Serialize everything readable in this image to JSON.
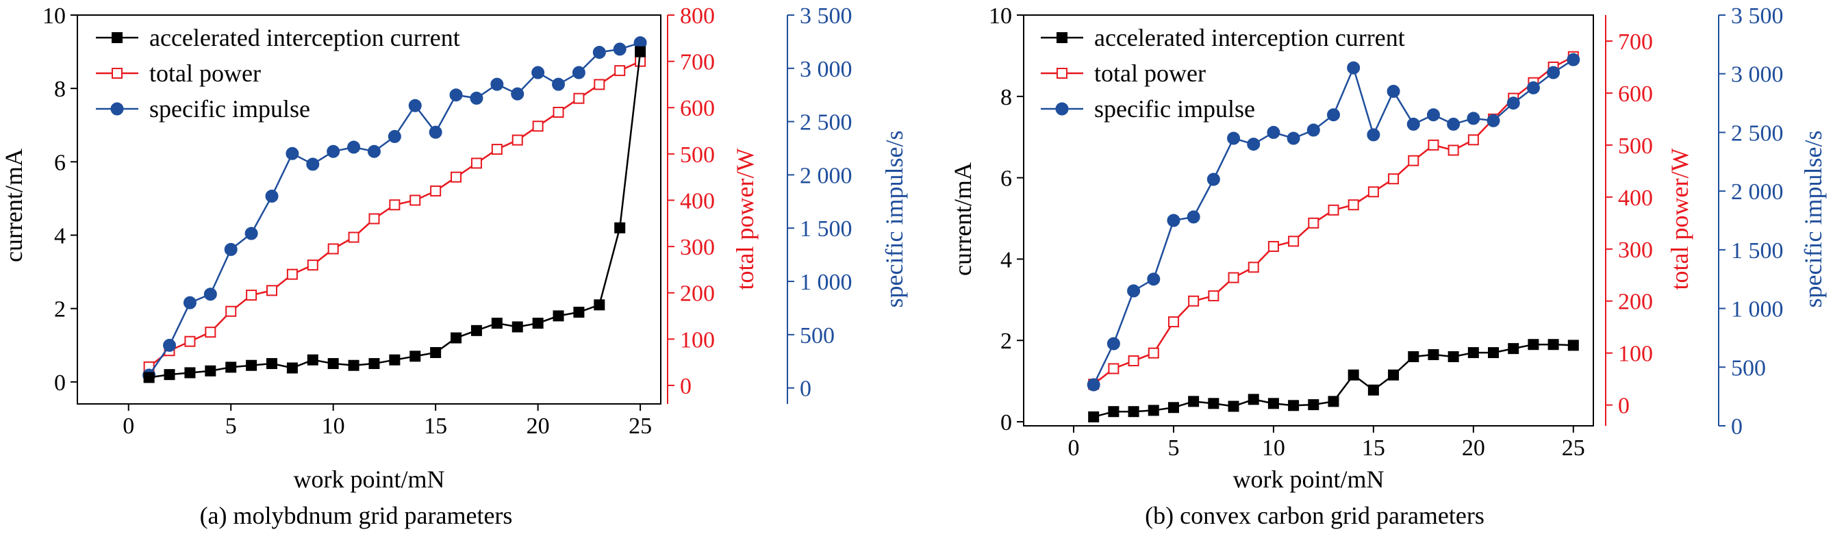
{
  "figure": {
    "panels": [
      {
        "caption": "(a) molybdnum grid parameters"
      },
      {
        "caption": "(b) convex carbon grid parameters"
      }
    ]
  },
  "colors": {
    "current": "#000000",
    "power": "#e8181f",
    "impulse": "#1f4e9c"
  },
  "chart_data": [
    {
      "type": "line",
      "caption": "(a) molybdnum grid parameters",
      "xlabel": "work point/mN",
      "xlim": [
        -2.5,
        26
      ],
      "xticks": [
        0,
        5,
        10,
        15,
        20,
        25
      ],
      "x": [
        1,
        2,
        3,
        4,
        5,
        6,
        7,
        8,
        9,
        10,
        11,
        12,
        13,
        14,
        15,
        16,
        17,
        18,
        19,
        20,
        21,
        22,
        23,
        24,
        25
      ],
      "axes": {
        "current": {
          "label": "current/mA",
          "lim": [
            -0.6,
            10
          ],
          "ticks": [
            0,
            2,
            4,
            6,
            8,
            10
          ],
          "tick_labels": [
            "0",
            "2",
            "4",
            "6",
            "8",
            "10"
          ]
        },
        "power": {
          "label": "total power/W",
          "lim": [
            -40,
            800
          ],
          "ticks": [
            0,
            100,
            200,
            300,
            400,
            500,
            600,
            700,
            800
          ],
          "tick_labels": [
            "0",
            "100",
            "200",
            "300",
            "400",
            "500",
            "600",
            "700",
            "800"
          ]
        },
        "impulse": {
          "label": "specific impulse/s",
          "lim": [
            -150,
            3500
          ],
          "ticks": [
            0,
            500,
            1000,
            1500,
            2000,
            2500,
            3000,
            3500
          ],
          "tick_labels": [
            "0",
            "500",
            "1 000",
            "1 500",
            "2 000",
            "2 500",
            "3 000",
            "3 500"
          ]
        }
      },
      "legend": {
        "placement": "top-left"
      },
      "series": [
        {
          "name": "accelerated interception current",
          "axis": "current",
          "marker": "filled-square",
          "values": [
            0.12,
            0.2,
            0.25,
            0.3,
            0.4,
            0.45,
            0.5,
            0.38,
            0.6,
            0.5,
            0.45,
            0.5,
            0.6,
            0.7,
            0.8,
            1.2,
            1.4,
            1.6,
            1.5,
            1.6,
            1.8,
            1.9,
            2.1,
            4.2,
            9.0
          ]
        },
        {
          "name": "total power",
          "axis": "power",
          "marker": "open-square",
          "values": [
            40,
            75,
            95,
            115,
            160,
            195,
            205,
            240,
            260,
            295,
            320,
            360,
            390,
            400,
            420,
            450,
            480,
            510,
            530,
            560,
            590,
            620,
            650,
            680,
            700
          ]
        },
        {
          "name": "specific impulse",
          "axis": "impulse",
          "marker": "filled-circle",
          "values": [
            120,
            400,
            800,
            880,
            1300,
            1450,
            1800,
            2200,
            2100,
            2220,
            2260,
            2220,
            2360,
            2650,
            2400,
            2750,
            2720,
            2850,
            2760,
            2960,
            2850,
            2960,
            3150,
            3180,
            3240
          ]
        }
      ]
    },
    {
      "type": "line",
      "caption": "(b) convex carbon grid parameters",
      "xlabel": "work point/mN",
      "xlim": [
        -2.5,
        26
      ],
      "xticks": [
        0,
        5,
        10,
        15,
        20,
        25
      ],
      "x": [
        1,
        2,
        3,
        4,
        5,
        6,
        7,
        8,
        9,
        10,
        11,
        12,
        13,
        14,
        15,
        16,
        17,
        18,
        19,
        20,
        21,
        22,
        23,
        24,
        25
      ],
      "axes": {
        "current": {
          "label": "current/mA",
          "lim": [
            -0.1,
            10
          ],
          "ticks": [
            0,
            2,
            4,
            6,
            8,
            10
          ],
          "tick_labels": [
            "0",
            "2",
            "4",
            "6",
            "8",
            "10"
          ]
        },
        "power": {
          "label": "total power/W",
          "lim": [
            -40,
            750
          ],
          "ticks": [
            0,
            100,
            200,
            300,
            400,
            500,
            600,
            700
          ],
          "tick_labels": [
            "0",
            "100",
            "200",
            "300",
            "400",
            "500",
            "600",
            "700"
          ]
        },
        "impulse": {
          "label": "specific impulse/s",
          "lim": [
            0,
            3500
          ],
          "ticks": [
            0,
            500,
            1000,
            1500,
            2000,
            2500,
            3000,
            3500
          ],
          "tick_labels": [
            "0",
            "500",
            "1 000",
            "1 500",
            "2 000",
            "2 500",
            "3 000",
            "3 500"
          ]
        }
      },
      "legend": {
        "placement": "top-left"
      },
      "series": [
        {
          "name": "accelerated interception current",
          "axis": "current",
          "marker": "filled-square",
          "values": [
            0.12,
            0.25,
            0.25,
            0.28,
            0.35,
            0.5,
            0.45,
            0.38,
            0.55,
            0.45,
            0.4,
            0.42,
            0.5,
            1.15,
            0.78,
            1.15,
            1.6,
            1.65,
            1.6,
            1.7,
            1.7,
            1.8,
            1.9,
            1.9,
            1.88
          ]
        },
        {
          "name": "total power",
          "axis": "power",
          "marker": "open-square",
          "values": [
            40,
            70,
            85,
            100,
            160,
            200,
            210,
            245,
            265,
            305,
            315,
            350,
            375,
            385,
            410,
            435,
            470,
            500,
            490,
            510,
            550,
            590,
            620,
            650,
            670
          ]
        },
        {
          "name": "specific impulse",
          "axis": "impulse",
          "marker": "filled-circle",
          "values": [
            350,
            700,
            1150,
            1250,
            1750,
            1780,
            2100,
            2450,
            2400,
            2500,
            2450,
            2520,
            2650,
            3050,
            2480,
            2850,
            2570,
            2650,
            2570,
            2620,
            2600,
            2750,
            2880,
            3010,
            3120
          ]
        }
      ]
    }
  ]
}
